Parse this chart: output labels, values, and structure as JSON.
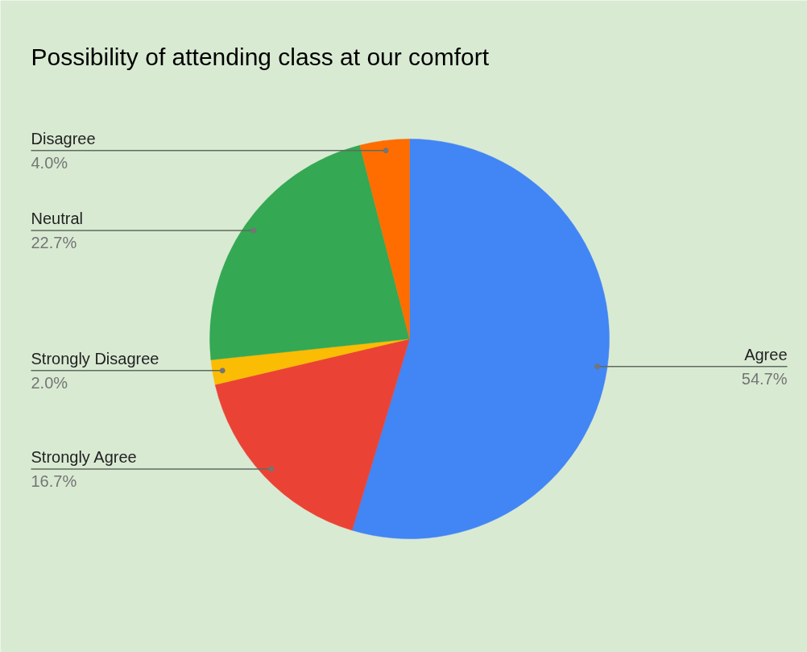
{
  "chart_data": {
    "type": "pie",
    "title": "Possibility of attending class at our comfort",
    "categories": [
      "Agree",
      "Strongly Agree",
      "Strongly Disagree",
      "Neutral",
      "Disagree"
    ],
    "values": [
      54.7,
      16.7,
      2.0,
      22.7,
      4.0
    ],
    "colors": [
      "#4285f4",
      "#ea4335",
      "#fbbc04",
      "#34a853",
      "#ff6d01"
    ],
    "value_labels": [
      "54.7%",
      "16.7%",
      "2.0%",
      "22.7%",
      "4.0%"
    ]
  }
}
